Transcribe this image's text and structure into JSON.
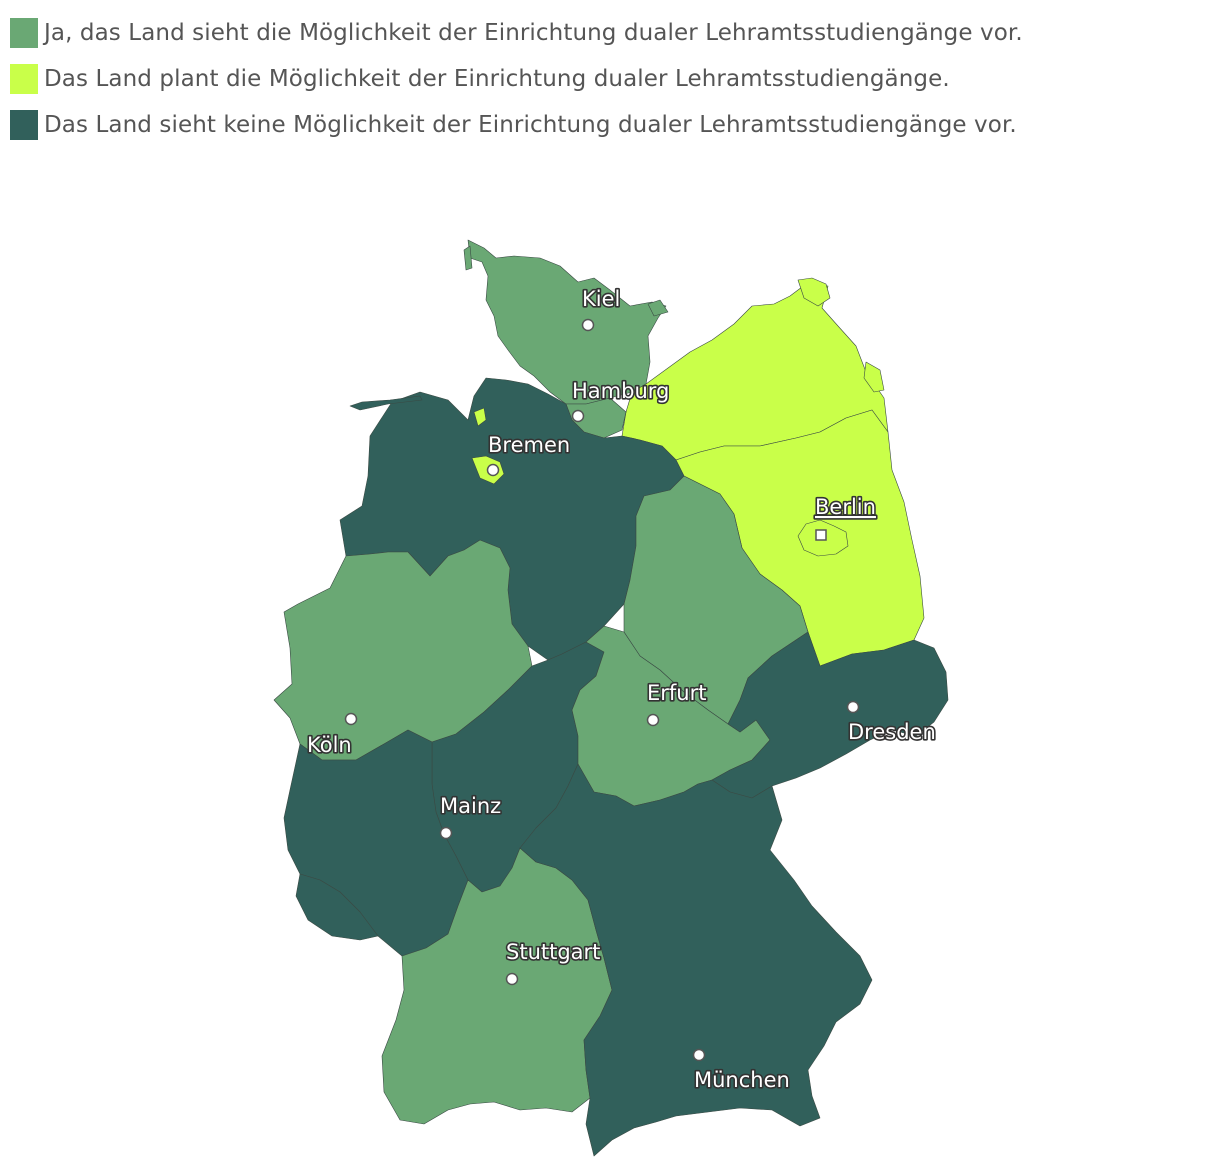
{
  "colors": {
    "yes": "#6aa874",
    "planned": "#c9ff49",
    "no": "#31605b"
  },
  "legend": [
    {
      "label": "Ja, das Land sieht die Möglichkeit der Einrichtung dualer Lehramtsstudiengänge vor.",
      "category": "yes"
    },
    {
      "label": "Das Land plant die Möglichkeit der Einrichtung dualer Lehramtsstudiengänge.",
      "category": "planned"
    },
    {
      "label": "Das Land sieht keine Möglichkeit der Einrichtung dualer Lehramtsstudiengänge vor.",
      "category": "no"
    }
  ],
  "states": [
    {
      "id": "schleswig-holstein",
      "category": "yes"
    },
    {
      "id": "hamburg",
      "category": "yes"
    },
    {
      "id": "niedersachsen",
      "category": "no"
    },
    {
      "id": "bremen",
      "category": "planned"
    },
    {
      "id": "mecklenburg-vorpommern",
      "category": "planned"
    },
    {
      "id": "brandenburg",
      "category": "planned"
    },
    {
      "id": "berlin",
      "category": "planned"
    },
    {
      "id": "sachsen-anhalt",
      "category": "yes"
    },
    {
      "id": "nordrhein-westfalen",
      "category": "yes"
    },
    {
      "id": "hessen",
      "category": "no"
    },
    {
      "id": "thueringen",
      "category": "yes"
    },
    {
      "id": "sachsen",
      "category": "no"
    },
    {
      "id": "rheinland-pfalz",
      "category": "no"
    },
    {
      "id": "saarland",
      "category": "no"
    },
    {
      "id": "baden-wuerttemberg",
      "category": "yes"
    },
    {
      "id": "bayern",
      "category": "no"
    }
  ],
  "cities": {
    "kiel": "Kiel",
    "hamburg": "Hamburg",
    "bremen": "Bremen",
    "berlin": "Berlin",
    "erfurt": "Erfurt",
    "dresden": "Dresden",
    "koeln": "Köln",
    "mainz": "Mainz",
    "stuttgart": "Stuttgart",
    "muenchen": "München"
  }
}
